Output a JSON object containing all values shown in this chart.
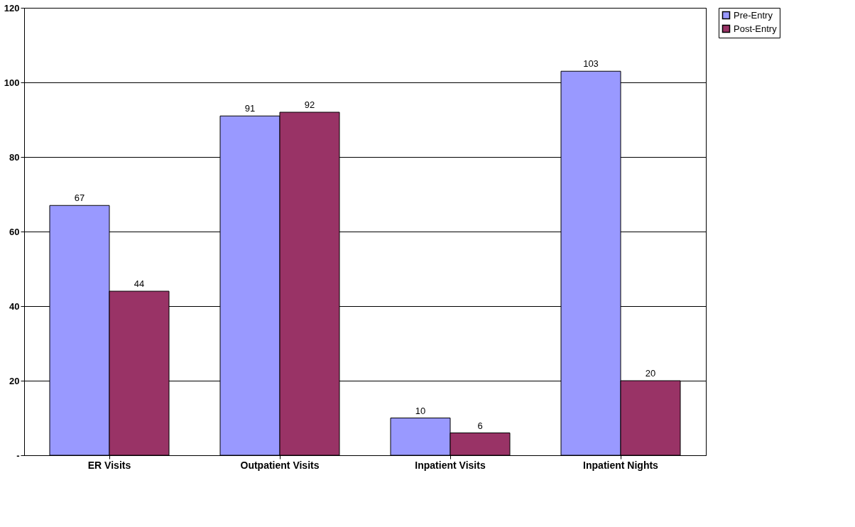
{
  "chart_data": {
    "type": "bar",
    "categories": [
      "ER Visits",
      "Outpatient Visits",
      "Inpatient Visits",
      "Inpatient Nights"
    ],
    "series": [
      {
        "name": "Pre-Entry",
        "color": "#9999ff",
        "values": [
          67,
          91,
          10,
          103
        ]
      },
      {
        "name": "Post-Entry",
        "color": "#993366",
        "values": [
          44,
          92,
          6,
          20
        ]
      }
    ],
    "ylim": [
      0,
      120
    ],
    "yticks": [
      {
        "value": 0,
        "label": "-"
      },
      20,
      40,
      60,
      80,
      100,
      120
    ],
    "grid": "y",
    "legend": "right",
    "data_labels": true
  }
}
